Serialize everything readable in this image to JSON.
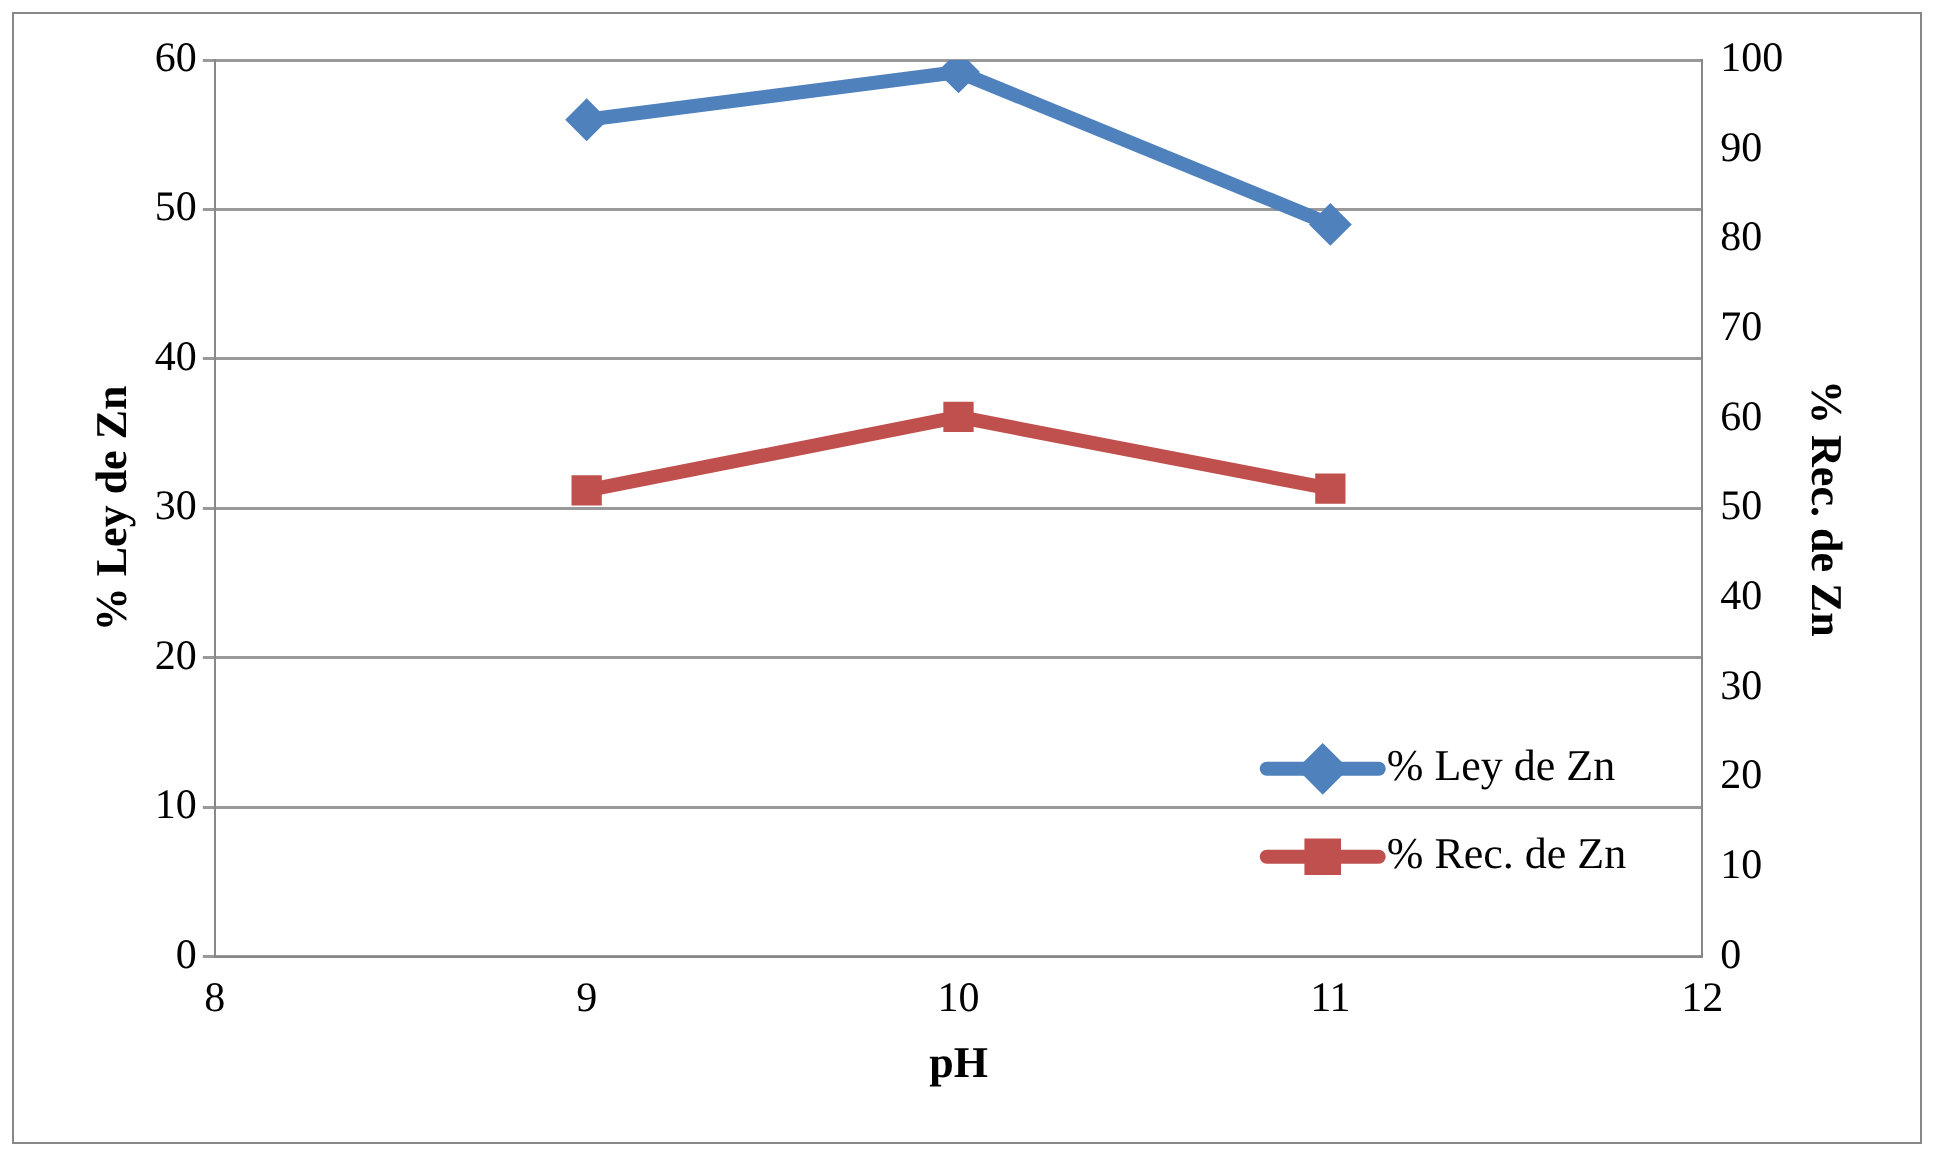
{
  "chart_data": {
    "type": "line",
    "xlabel": "pH",
    "ylabel": "% Ley de Zn",
    "y2label": "% Rec. de Zn",
    "x": [
      9,
      10,
      11
    ],
    "series": [
      {
        "name": "% Ley de Zn",
        "color": "#4f81bd",
        "values": [
          56,
          59.2,
          49
        ],
        "marker": "diamond"
      },
      {
        "name": "% Rec. de Zn",
        "color": "#c0504d",
        "values": [
          52,
          60.2,
          52.2
        ],
        "marker": "square",
        "axis": "y2"
      }
    ],
    "xlim": [
      8,
      12
    ],
    "xticks": [
      8,
      9,
      10,
      11,
      12
    ],
    "ylim": [
      0,
      60
    ],
    "yticks": [
      0,
      10,
      20,
      30,
      40,
      50,
      60
    ],
    "y2lim": [
      0,
      100
    ],
    "y2ticks": [
      0,
      10,
      20,
      30,
      40,
      50,
      60,
      70,
      80,
      90,
      100
    ],
    "grid": "y",
    "legend": "bottom right",
    "line_style": "solid"
  }
}
